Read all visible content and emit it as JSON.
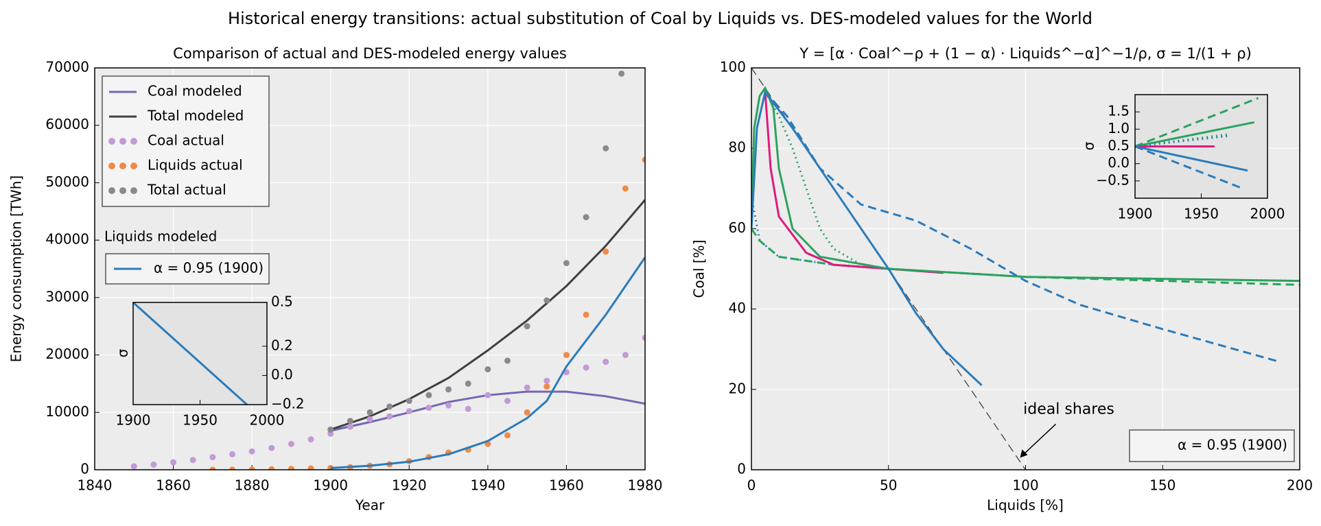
{
  "title": "Historical energy transitions: actual substitution of Coal by Liquids vs. DES-modeled values for the World",
  "chart_data": [
    {
      "type": "line",
      "title": "Comparison of actual and DES-modeled energy values",
      "x_label": "Year",
      "y_label": "Energy consumption [TWh]",
      "xlim": [
        1840,
        1980
      ],
      "ylim": [
        0,
        70000
      ],
      "xticks": [
        1840,
        1860,
        1880,
        1900,
        1920,
        1940,
        1960,
        1980
      ],
      "yticks": [
        0,
        10000,
        20000,
        30000,
        40000,
        50000,
        60000,
        70000
      ],
      "grid": true,
      "legend": "upper left",
      "series": [
        {
          "name": "Coal modeled",
          "color": "#7467b3",
          "style": "line",
          "x": [
            1900,
            1910,
            1920,
            1930,
            1940,
            1950,
            1960,
            1970,
            1980
          ],
          "values": [
            6800,
            8300,
            10000,
            11800,
            13000,
            13600,
            13600,
            12800,
            11500
          ]
        },
        {
          "name": "Total modeled",
          "color": "#404040",
          "style": "line",
          "x": [
            1900,
            1910,
            1920,
            1930,
            1940,
            1950,
            1960,
            1970,
            1980
          ],
          "values": [
            7000,
            9300,
            12300,
            16000,
            20800,
            26000,
            32000,
            39000,
            47000
          ]
        },
        {
          "name": "Coal actual",
          "color": "#c29ad6",
          "style": "dots",
          "x": [
            1850,
            1855,
            1860,
            1865,
            1870,
            1875,
            1880,
            1885,
            1890,
            1895,
            1900,
            1905,
            1910,
            1915,
            1920,
            1925,
            1930,
            1935,
            1940,
            1945,
            1950,
            1955,
            1960,
            1965,
            1970,
            1975,
            1980
          ],
          "values": [
            600,
            900,
            1300,
            1700,
            2200,
            2700,
            3200,
            3800,
            4500,
            5300,
            6300,
            7500,
            8800,
            9300,
            10200,
            10800,
            11200,
            10600,
            13000,
            12000,
            14300,
            15500,
            17000,
            17800,
            18800,
            20000,
            23000
          ]
        },
        {
          "name": "Liquids actual",
          "color": "#ef8a47",
          "style": "dots",
          "x": [
            1870,
            1875,
            1880,
            1885,
            1890,
            1895,
            1900,
            1905,
            1910,
            1915,
            1920,
            1925,
            1930,
            1935,
            1940,
            1945,
            1950,
            1955,
            1960,
            1965,
            1970,
            1975,
            1980
          ],
          "values": [
            0,
            20,
            50,
            90,
            150,
            220,
            300,
            450,
            700,
            950,
            1500,
            2200,
            3000,
            3500,
            4500,
            6000,
            10000,
            14500,
            20000,
            27000,
            38000,
            49000,
            54000
          ]
        },
        {
          "name": "Total actual",
          "color": "#8a8a8a",
          "style": "dots",
          "x": [
            1900,
            1905,
            1910,
            1915,
            1920,
            1925,
            1930,
            1935,
            1940,
            1945,
            1950,
            1955,
            1960,
            1965,
            1970,
            1974
          ],
          "values": [
            7000,
            8500,
            10000,
            11000,
            12000,
            13000,
            14000,
            15000,
            17500,
            19000,
            25000,
            29500,
            36000,
            44000,
            56000,
            69000
          ]
        },
        {
          "name": "α = 0.95 (1900)",
          "legend_title": "Liquids modeled",
          "color": "#2b7bba",
          "style": "line",
          "x": [
            1900,
            1910,
            1920,
            1930,
            1940,
            1950,
            1955,
            1960,
            1970,
            1980
          ],
          "values": [
            300,
            700,
            1400,
            2700,
            5000,
            9000,
            12000,
            18000,
            27000,
            37000
          ]
        }
      ]
    },
    {
      "type": "line",
      "y_label": "σ",
      "xlim": [
        1900,
        2000
      ],
      "ylim": [
        -0.2,
        0.5
      ],
      "xticks": [
        1900,
        1950,
        2000
      ],
      "yticks": [
        {
          "value": -0.2,
          "label": "−0.2"
        },
        {
          "value": 0,
          "label": "0.0"
        },
        0.2,
        0.5
      ],
      "ytick_side": "right",
      "grid": false,
      "series": [
        {
          "color": "#2b7bba",
          "style": "line",
          "x": [
            1900,
            1985
          ],
          "values": [
            0.5,
            -0.2
          ]
        }
      ]
    },
    {
      "type": "line",
      "title": "Y = [α · Coal^−ρ + (1 − α) · Liquids^−α]^−1/ρ, σ = 1/(1 + ρ)",
      "x_label": "Liquids [%]",
      "y_label": "Coal [%]",
      "xlim": [
        0,
        200
      ],
      "ylim": [
        0,
        100
      ],
      "xticks": [
        0,
        50,
        100,
        150,
        200
      ],
      "yticks": [
        0,
        20,
        40,
        60,
        80,
        100
      ],
      "grid": true,
      "legend": "lower right",
      "legend_text": "α = 0.95 (1900)",
      "annotation": {
        "text": "ideal shares",
        "xy": [
          98,
          3
        ]
      },
      "series": [
        {
          "color": "#404040",
          "style": "dashed",
          "linewidth": 1.3,
          "x": [
            0,
            100
          ],
          "values": [
            100,
            0
          ]
        },
        {
          "color": "#2b7bba",
          "style": "dashed",
          "x": [
            5,
            13,
            25,
            40,
            50,
            60,
            80,
            100,
            120,
            150,
            192
          ],
          "values": [
            94,
            88,
            75,
            66,
            64,
            62,
            55,
            47,
            41,
            35,
            27
          ]
        },
        {
          "color": "#2b7bba",
          "style": "dotted",
          "x": [
            0,
            3,
            10,
            30,
            50,
            100,
            200
          ],
          "values": [
            68,
            57,
            53,
            51,
            50,
            48,
            47
          ]
        },
        {
          "color": "#2ca25f",
          "style": "dashed",
          "x": [
            0,
            3,
            10,
            30,
            50,
            100,
            200
          ],
          "values": [
            60,
            57,
            53,
            51,
            50,
            48,
            46
          ]
        },
        {
          "color": "#2ca25f",
          "style": "dotted",
          "x": [
            5,
            10,
            15,
            20,
            25,
            30,
            40,
            50
          ],
          "values": [
            94,
            88,
            80,
            70,
            60,
            55,
            51,
            50
          ]
        },
        {
          "color": "#e0197d",
          "style": "line",
          "x": [
            5,
            7,
            10,
            20,
            30,
            50,
            70
          ],
          "values": [
            94,
            75,
            63,
            54,
            51,
            50,
            49
          ]
        },
        {
          "color": "#2ca25f",
          "style": "line",
          "x": [
            0,
            1,
            3,
            5,
            8,
            10,
            15,
            25,
            50,
            100,
            200
          ],
          "values": [
            62,
            85,
            93,
            95,
            90,
            75,
            60,
            53,
            50,
            48,
            47
          ]
        },
        {
          "color": "#2b7bba",
          "style": "line",
          "x": [
            0,
            2,
            5,
            15,
            30,
            50,
            60,
            70,
            84
          ],
          "values": [
            60,
            85,
            94,
            85,
            70,
            50,
            39,
            30,
            21
          ]
        }
      ]
    },
    {
      "type": "line",
      "y_label": "σ",
      "xlim": [
        1900,
        2000
      ],
      "ylim": [
        -1.0,
        2.0
      ],
      "xticks": [
        1900,
        1950,
        2000
      ],
      "yticks": [
        {
          "value": -0.5,
          "label": "−0.5"
        },
        {
          "value": 0,
          "label": "0.0"
        },
        0.5,
        {
          "value": 1,
          "label": "1.0"
        },
        1.5
      ],
      "ytick_side": "left",
      "grid": false,
      "series": [
        {
          "color": "#2ca25f",
          "style": "dashed",
          "x": [
            1900,
            1993
          ],
          "values": [
            0.5,
            1.9
          ]
        },
        {
          "color": "#2ca25f",
          "style": "line",
          "x": [
            1900,
            1990
          ],
          "values": [
            0.5,
            1.2
          ]
        },
        {
          "color": "#2ca25f",
          "style": "dotted",
          "x": [
            1900,
            1970
          ],
          "values": [
            0.5,
            0.85
          ]
        },
        {
          "color": "#2b7bba",
          "style": "dotted",
          "x": [
            1900,
            1970
          ],
          "values": [
            0.5,
            0.8
          ]
        },
        {
          "color": "#e0197d",
          "style": "line",
          "x": [
            1900,
            1960
          ],
          "values": [
            0.5,
            0.5
          ]
        },
        {
          "color": "#2b7bba",
          "style": "line",
          "x": [
            1900,
            1985
          ],
          "values": [
            0.5,
            -0.2
          ]
        },
        {
          "color": "#2b7bba",
          "style": "dashed",
          "x": [
            1900,
            1980
          ],
          "values": [
            0.5,
            -0.7
          ]
        }
      ]
    }
  ]
}
